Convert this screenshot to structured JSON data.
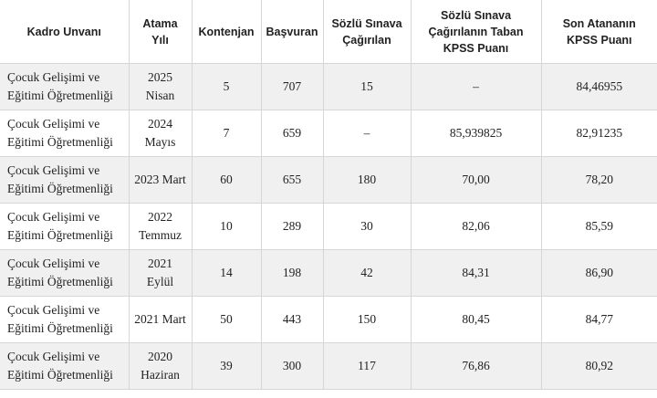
{
  "headers": [
    [
      "Kadro Unvanı"
    ],
    [
      "Atama",
      "Yılı"
    ],
    [
      "Kontenjan"
    ],
    [
      "Başvuran"
    ],
    [
      "Sözlü Sınava",
      "Çağırılan"
    ],
    [
      "Sözlü Sınava",
      "Çağırılanın Taban",
      "KPSS Puanı"
    ],
    [
      "Son Atananın",
      "KPSS Puanı"
    ]
  ],
  "rows": [
    {
      "title": [
        "Çocuk Gelişimi ve",
        "Eğitimi Öğretmenliği"
      ],
      "year": [
        "2025",
        "Nisan"
      ],
      "quota": "5",
      "applicants": "707",
      "oral": "15",
      "base": "–",
      "last": "84,46955"
    },
    {
      "title": [
        "Çocuk Gelişimi ve",
        "Eğitimi Öğretmenliği"
      ],
      "year": [
        "2024",
        "Mayıs"
      ],
      "quota": "7",
      "applicants": "659",
      "oral": "–",
      "base": "85,939825",
      "last": "82,91235"
    },
    {
      "title": [
        "Çocuk Gelişimi ve",
        "Eğitimi Öğretmenliği"
      ],
      "year": [
        "2023 Mart"
      ],
      "quota": "60",
      "applicants": "655",
      "oral": "180",
      "base": "70,00",
      "last": "78,20"
    },
    {
      "title": [
        "Çocuk Gelişimi ve",
        "Eğitimi Öğretmenliği"
      ],
      "year": [
        "2022",
        "Temmuz"
      ],
      "quota": "10",
      "applicants": "289",
      "oral": "30",
      "base": "82,06",
      "last": "85,59"
    },
    {
      "title": [
        "Çocuk Gelişimi ve",
        "Eğitimi Öğretmenliği"
      ],
      "year": [
        "2021",
        "Eylül"
      ],
      "quota": "14",
      "applicants": "198",
      "oral": "42",
      "base": "84,31",
      "last": "86,90"
    },
    {
      "title": [
        "Çocuk Gelişimi ve",
        "Eğitimi Öğretmenliği"
      ],
      "year": [
        "2021 Mart"
      ],
      "quota": "50",
      "applicants": "443",
      "oral": "150",
      "base": "80,45",
      "last": "84,77"
    },
    {
      "title": [
        "Çocuk Gelişimi ve",
        "Eğitimi Öğretmenliği"
      ],
      "year": [
        "2020",
        "Haziran"
      ],
      "quota": "39",
      "applicants": "300",
      "oral": "117",
      "base": "76,86",
      "last": "80,92"
    }
  ]
}
